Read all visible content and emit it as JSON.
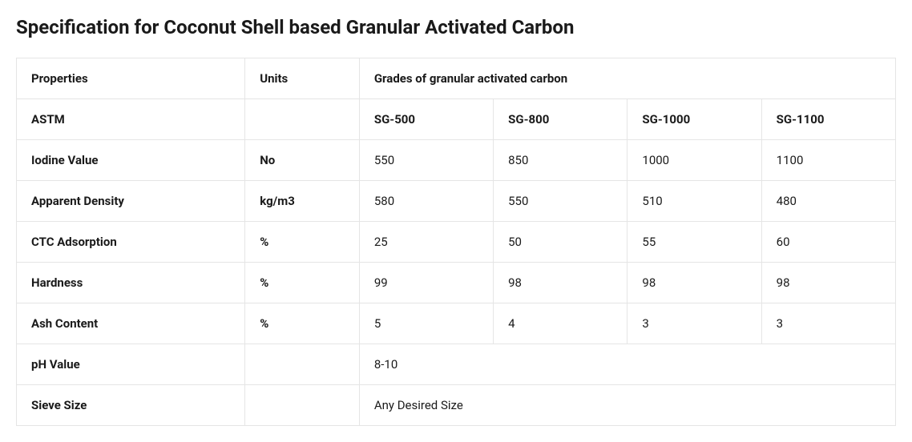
{
  "title": "Specification for Coconut Shell based Granular Activated Carbon",
  "table": {
    "header": {
      "properties": "Properties",
      "units": "Units",
      "gradesSpan": "Grades of granular activated carbon"
    },
    "gradeRow": {
      "label": "ASTM",
      "units": "",
      "g1": "SG-500",
      "g2": "SG-800",
      "g3": "SG-1000",
      "g4": "SG-1100"
    },
    "rows": [
      {
        "label": "Iodine Value",
        "units": "No",
        "g1": "550",
        "g2": "850",
        "g3": "1000",
        "g4": "1100"
      },
      {
        "label": "Apparent Density",
        "units": "kg/m3",
        "g1": "580",
        "g2": "550",
        "g3": "510",
        "g4": "480"
      },
      {
        "label": "CTC Adsorption",
        "units": "%",
        "g1": "25",
        "g2": "50",
        "g3": "55",
        "g4": "60"
      },
      {
        "label": "Hardness",
        "units": "%",
        "g1": "99",
        "g2": "98",
        "g3": "98",
        "g4": "98"
      },
      {
        "label": "Ash Content",
        "units": "%",
        "g1": "5",
        "g2": "4",
        "g3": "3",
        "g4": "3"
      }
    ],
    "spanRows": [
      {
        "label": "pH Value",
        "units": "",
        "value": "8-10"
      },
      {
        "label": "Sieve Size",
        "units": "",
        "value": "Any Desired Size"
      }
    ]
  },
  "style": {
    "borderColor": "#e5e5e5",
    "textColor": "#1a1a1a",
    "backgroundColor": "#ffffff",
    "titleFontSize": 24,
    "cellFontSize": 15,
    "cellPadding": "16px 18px",
    "columnWidths": {
      "properties": "26%",
      "units": "13%",
      "grade": "15.25%"
    }
  }
}
